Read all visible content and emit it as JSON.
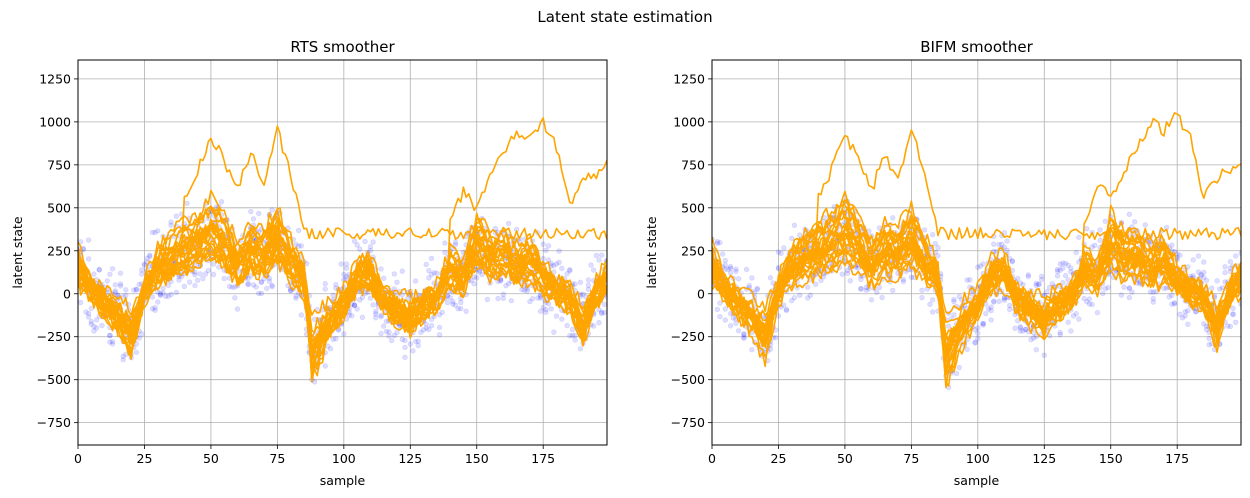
{
  "figure": {
    "suptitle": "Latent state estimation"
  },
  "chart_data": [
    {
      "type": "line",
      "title": "RTS smoother",
      "xlabel": "sample",
      "ylabel": "latent state",
      "xlim": [
        0,
        199
      ],
      "ylim": [
        -880,
        1360
      ],
      "grid": true,
      "xticks": [
        0,
        25,
        50,
        75,
        100,
        125,
        150,
        175
      ],
      "xtick_labels": [
        "0",
        "25",
        "50",
        "75",
        "100",
        "125",
        "150",
        "175"
      ],
      "yticks": [
        -750,
        -500,
        -250,
        0,
        250,
        500,
        750,
        1000,
        1250
      ],
      "ytick_labels": [
        "−750",
        "−500",
        "−250",
        "0",
        "250",
        "500",
        "750",
        "1000",
        "1250"
      ],
      "line_color": "#ffa500",
      "marker_color": "#0000ff",
      "base_series": {
        "x": [
          0,
          5,
          10,
          15,
          20,
          25,
          30,
          35,
          40,
          45,
          50,
          55,
          60,
          65,
          70,
          75,
          80,
          85,
          88,
          95,
          100,
          105,
          110,
          115,
          120,
          125,
          130,
          135,
          140,
          145,
          150,
          155,
          160,
          165,
          170,
          175,
          180,
          185,
          190,
          195,
          199
        ],
        "values": [
          150,
          30,
          -50,
          -120,
          -230,
          20,
          150,
          200,
          250,
          280,
          350,
          280,
          160,
          240,
          220,
          310,
          180,
          80,
          -330,
          -150,
          -50,
          100,
          120,
          -40,
          -90,
          -130,
          -60,
          -10,
          130,
          90,
          280,
          200,
          220,
          150,
          180,
          80,
          20,
          -20,
          -180,
          20,
          80
        ]
      },
      "outlier_series": [
        {
          "x": [
            140,
            145,
            150,
            155,
            160,
            165,
            170,
            175,
            180,
            185,
            190,
            195,
            199
          ],
          "values": [
            400,
            600,
            500,
            700,
            800,
            950,
            900,
            1000,
            850,
            500,
            650,
            700,
            750
          ]
        },
        {
          "x": [
            40,
            45,
            50,
            55,
            60,
            65,
            70,
            75,
            80,
            85
          ],
          "values": [
            550,
            720,
            920,
            780,
            600,
            820,
            650,
            950,
            700,
            350
          ]
        }
      ]
    },
    {
      "type": "line",
      "title": "BIFM smoother",
      "xlabel": "sample",
      "ylabel": "latent state",
      "xlim": [
        0,
        199
      ],
      "ylim": [
        -880,
        1360
      ],
      "grid": true,
      "xticks": [
        0,
        25,
        50,
        75,
        100,
        125,
        150,
        175
      ],
      "xtick_labels": [
        "0",
        "25",
        "50",
        "75",
        "100",
        "125",
        "150",
        "175"
      ],
      "yticks": [
        -750,
        -500,
        -250,
        0,
        250,
        500,
        750,
        1000,
        1250
      ],
      "ytick_labels": [
        "−750",
        "−500",
        "−250",
        "0",
        "250",
        "500",
        "750",
        "1000",
        "1250"
      ],
      "line_color": "#ffa500",
      "marker_color": "#0000ff",
      "base_series": {
        "x": [
          0,
          5,
          10,
          15,
          20,
          25,
          30,
          35,
          40,
          45,
          50,
          55,
          60,
          65,
          70,
          75,
          80,
          85,
          88,
          95,
          100,
          105,
          110,
          115,
          120,
          125,
          130,
          135,
          140,
          145,
          150,
          155,
          160,
          165,
          170,
          175,
          180,
          185,
          190,
          195,
          199
        ],
        "values": [
          150,
          30,
          -50,
          -120,
          -230,
          20,
          150,
          200,
          250,
          280,
          350,
          280,
          160,
          240,
          220,
          310,
          180,
          80,
          -330,
          -150,
          -50,
          100,
          120,
          -40,
          -90,
          -130,
          -60,
          -10,
          130,
          90,
          280,
          200,
          220,
          150,
          180,
          80,
          20,
          -20,
          -180,
          20,
          80
        ]
      },
      "outlier_series": [
        {
          "x": [
            140,
            145,
            150,
            155,
            160,
            165,
            170,
            175,
            180,
            185,
            190,
            195,
            199
          ],
          "values": [
            400,
            650,
            550,
            700,
            850,
            1000,
            950,
            1050,
            900,
            550,
            680,
            720,
            760
          ]
        },
        {
          "x": [
            40,
            45,
            50,
            55,
            60,
            65,
            70,
            75,
            80,
            85
          ],
          "values": [
            550,
            720,
            920,
            780,
            600,
            820,
            650,
            950,
            700,
            350
          ]
        }
      ]
    }
  ]
}
